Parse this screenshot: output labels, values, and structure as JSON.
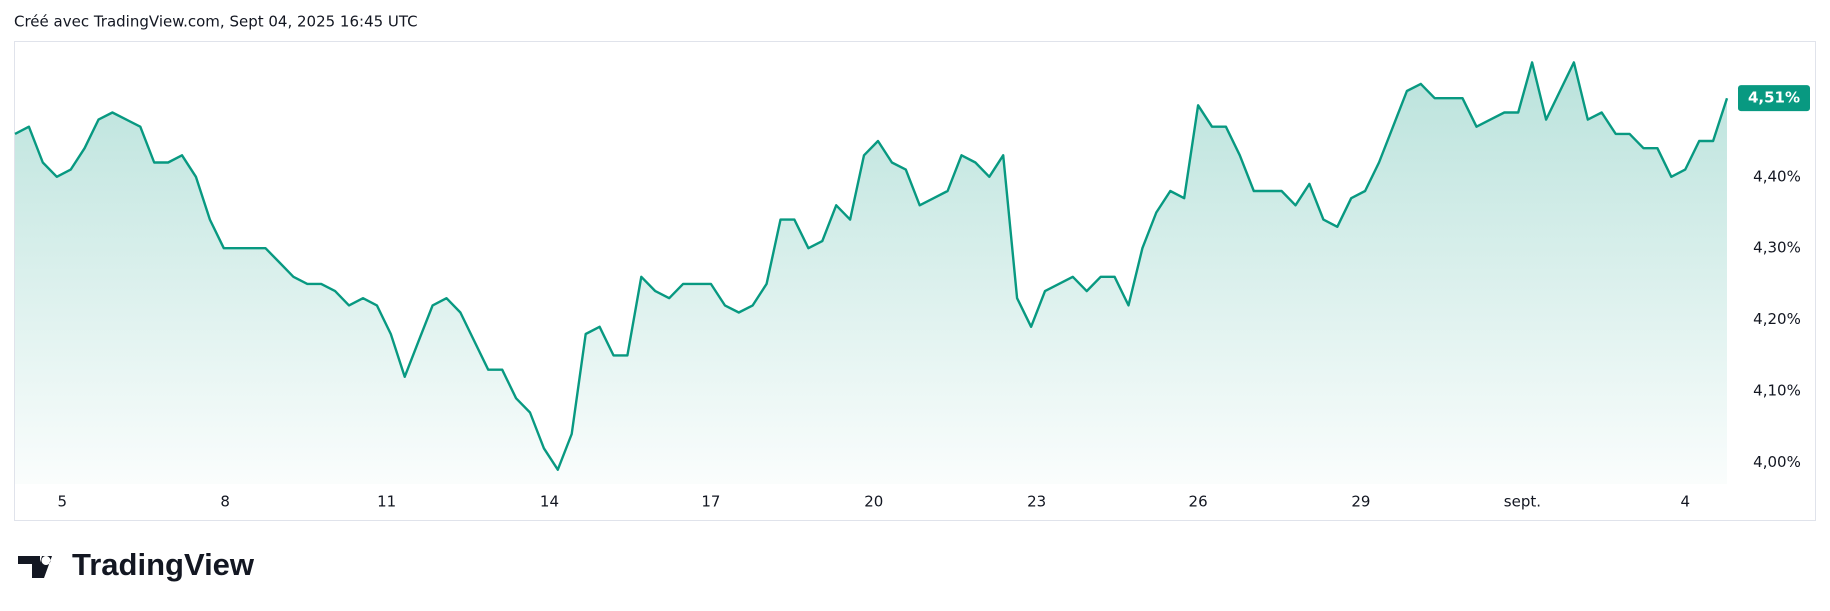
{
  "chart_data": {
    "type": "area-line",
    "header": "Créé avec TradingView.com, Sept 04, 2025 16:45 UTC",
    "brand": "TradingView",
    "color": "#089981",
    "values": [
      4.46,
      4.47,
      4.42,
      4.4,
      4.41,
      4.44,
      4.48,
      4.49,
      4.48,
      4.47,
      4.42,
      4.42,
      4.43,
      4.4,
      4.34,
      4.3,
      4.3,
      4.3,
      4.3,
      4.28,
      4.26,
      4.25,
      4.25,
      4.24,
      4.22,
      4.23,
      4.22,
      4.18,
      4.12,
      4.17,
      4.22,
      4.23,
      4.21,
      4.17,
      4.13,
      4.13,
      4.09,
      4.07,
      4.02,
      3.99,
      4.04,
      4.18,
      4.19,
      4.15,
      4.15,
      4.26,
      4.24,
      4.23,
      4.25,
      4.25,
      4.25,
      4.22,
      4.21,
      4.22,
      4.25,
      4.34,
      4.34,
      4.3,
      4.31,
      4.36,
      4.34,
      4.43,
      4.45,
      4.42,
      4.41,
      4.36,
      4.37,
      4.38,
      4.43,
      4.42,
      4.4,
      4.43,
      4.23,
      4.19,
      4.24,
      4.25,
      4.26,
      4.24,
      4.26,
      4.26,
      4.22,
      4.3,
      4.35,
      4.38,
      4.37,
      4.5,
      4.47,
      4.47,
      4.43,
      4.38,
      4.38,
      4.38,
      4.36,
      4.39,
      4.34,
      4.33,
      4.37,
      4.38,
      4.42,
      4.47,
      4.52,
      4.53,
      4.51,
      4.51,
      4.51,
      4.47,
      4.48,
      4.49,
      4.49,
      4.56,
      4.48,
      4.52,
      4.56,
      4.48,
      4.49,
      4.46,
      4.46,
      4.44,
      4.44,
      4.4,
      4.41,
      4.45,
      4.45,
      4.51
    ],
    "xlim": [
      0,
      123
    ],
    "xticks": [
      {
        "value": 3.4,
        "label": "5"
      },
      {
        "value": 15.1,
        "label": "8"
      },
      {
        "value": 26.7,
        "label": "11"
      },
      {
        "value": 38.4,
        "label": "14"
      },
      {
        "value": 50.0,
        "label": "17"
      },
      {
        "value": 61.7,
        "label": "20"
      },
      {
        "value": 73.4,
        "label": "23"
      },
      {
        "value": 85.0,
        "label": "26"
      },
      {
        "value": 96.7,
        "label": "29"
      },
      {
        "value": 108.3,
        "label": "sept."
      },
      {
        "value": 120.0,
        "label": "4"
      }
    ],
    "ylim": [
      3.97,
      4.59
    ],
    "yticks": [
      {
        "value": 4.0,
        "label": "4,00%"
      },
      {
        "value": 4.1,
        "label": "4,10%"
      },
      {
        "value": 4.2,
        "label": "4,20%"
      },
      {
        "value": 4.3,
        "label": "4,30%"
      },
      {
        "value": 4.4,
        "label": "4,40%"
      }
    ],
    "last_label": {
      "value": 4.51,
      "label": "4,51%"
    },
    "grid": false
  }
}
